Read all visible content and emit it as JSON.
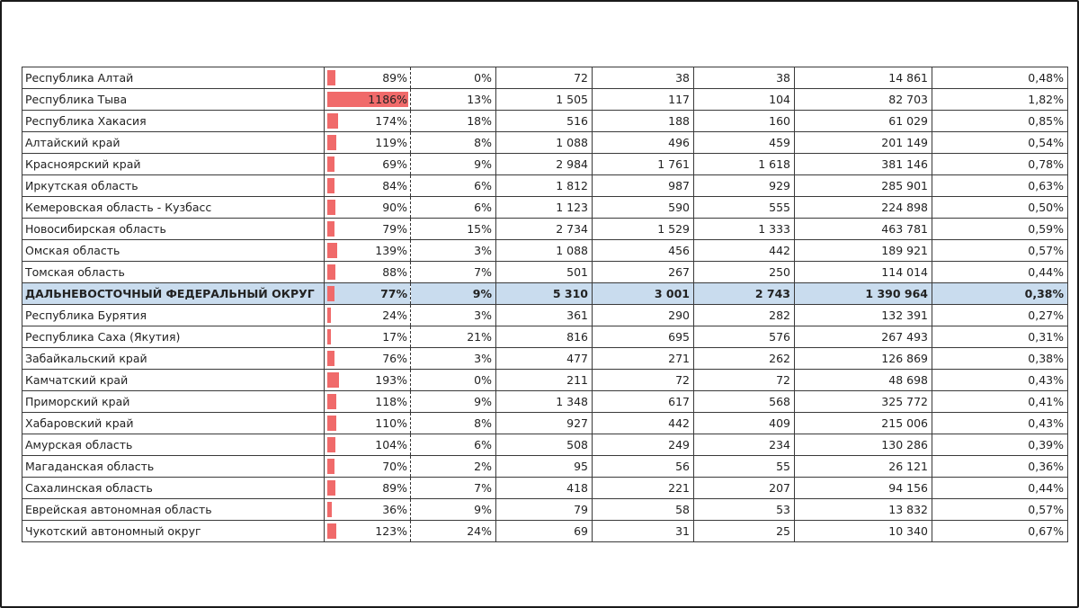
{
  "rows": [
    {
      "name": "Республика Алтай",
      "ratio": "89%",
      "ratio_value": 89,
      "share": "0%",
      "c3": "72",
      "c4": "38",
      "c5": "38",
      "c6": "14 861",
      "c7": "0,48%",
      "district": false
    },
    {
      "name": "Республика Тыва",
      "ratio": "1186%",
      "ratio_value": 1186,
      "share": "13%",
      "c3": "1 505",
      "c4": "117",
      "c5": "104",
      "c6": "82 703",
      "c7": "1,82%",
      "district": false
    },
    {
      "name": "Республика Хакасия",
      "ratio": "174%",
      "ratio_value": 174,
      "share": "18%",
      "c3": "516",
      "c4": "188",
      "c5": "160",
      "c6": "61 029",
      "c7": "0,85%",
      "district": false
    },
    {
      "name": "Алтайский край",
      "ratio": "119%",
      "ratio_value": 119,
      "share": "8%",
      "c3": "1 088",
      "c4": "496",
      "c5": "459",
      "c6": "201 149",
      "c7": "0,54%",
      "district": false
    },
    {
      "name": "Красноярский край",
      "ratio": "69%",
      "ratio_value": 69,
      "share": "9%",
      "c3": "2 984",
      "c4": "1 761",
      "c5": "1 618",
      "c6": "381 146",
      "c7": "0,78%",
      "district": false
    },
    {
      "name": "Иркутская область",
      "ratio": "84%",
      "ratio_value": 84,
      "share": "6%",
      "c3": "1 812",
      "c4": "987",
      "c5": "929",
      "c6": "285 901",
      "c7": "0,63%",
      "district": false
    },
    {
      "name": "Кемеровская область - Кузбасс",
      "ratio": "90%",
      "ratio_value": 90,
      "share": "6%",
      "c3": "1 123",
      "c4": "590",
      "c5": "555",
      "c6": "224 898",
      "c7": "0,50%",
      "district": false
    },
    {
      "name": "Новосибирская область",
      "ratio": "79%",
      "ratio_value": 79,
      "share": "15%",
      "c3": "2 734",
      "c4": "1 529",
      "c5": "1 333",
      "c6": "463 781",
      "c7": "0,59%",
      "district": false
    },
    {
      "name": "Омская область",
      "ratio": "139%",
      "ratio_value": 139,
      "share": "3%",
      "c3": "1 088",
      "c4": "456",
      "c5": "442",
      "c6": "189 921",
      "c7": "0,57%",
      "district": false
    },
    {
      "name": "Томская область",
      "ratio": "88%",
      "ratio_value": 88,
      "share": "7%",
      "c3": "501",
      "c4": "267",
      "c5": "250",
      "c6": "114 014",
      "c7": "0,44%",
      "district": false
    },
    {
      "name": "ДАЛЬНЕВОСТОЧНЫЙ ФЕДЕРАЛЬНЫЙ ОКРУГ",
      "ratio": "77%",
      "ratio_value": 77,
      "share": "9%",
      "c3": "5 310",
      "c4": "3 001",
      "c5": "2 743",
      "c6": "1 390 964",
      "c7": "0,38%",
      "district": true
    },
    {
      "name": "Республика Бурятия",
      "ratio": "24%",
      "ratio_value": 24,
      "share": "3%",
      "c3": "361",
      "c4": "290",
      "c5": "282",
      "c6": "132 391",
      "c7": "0,27%",
      "district": false
    },
    {
      "name": "Республика Саха (Якутия)",
      "ratio": "17%",
      "ratio_value": 17,
      "share": "21%",
      "c3": "816",
      "c4": "695",
      "c5": "576",
      "c6": "267 493",
      "c7": "0,31%",
      "district": false
    },
    {
      "name": "Забайкальский край",
      "ratio": "76%",
      "ratio_value": 76,
      "share": "3%",
      "c3": "477",
      "c4": "271",
      "c5": "262",
      "c6": "126 869",
      "c7": "0,38%",
      "district": false
    },
    {
      "name": "Камчатский край",
      "ratio": "193%",
      "ratio_value": 193,
      "share": "0%",
      "c3": "211",
      "c4": "72",
      "c5": "72",
      "c6": "48 698",
      "c7": "0,43%",
      "district": false
    },
    {
      "name": "Приморский край",
      "ratio": "118%",
      "ratio_value": 118,
      "share": "9%",
      "c3": "1 348",
      "c4": "617",
      "c5": "568",
      "c6": "325 772",
      "c7": "0,41%",
      "district": false
    },
    {
      "name": "Хабаровский край",
      "ratio": "110%",
      "ratio_value": 110,
      "share": "8%",
      "c3": "927",
      "c4": "442",
      "c5": "409",
      "c6": "215 006",
      "c7": "0,43%",
      "district": false
    },
    {
      "name": "Амурская область",
      "ratio": "104%",
      "ratio_value": 104,
      "share": "6%",
      "c3": "508",
      "c4": "249",
      "c5": "234",
      "c6": "130 286",
      "c7": "0,39%",
      "district": false
    },
    {
      "name": "Магаданская область",
      "ratio": "70%",
      "ratio_value": 70,
      "share": "2%",
      "c3": "95",
      "c4": "56",
      "c5": "55",
      "c6": "26 121",
      "c7": "0,36%",
      "district": false
    },
    {
      "name": "Сахалинская область",
      "ratio": "89%",
      "ratio_value": 89,
      "share": "7%",
      "c3": "418",
      "c4": "221",
      "c5": "207",
      "c6": "94 156",
      "c7": "0,44%",
      "district": false
    },
    {
      "name": "Еврейская автономная область",
      "ratio": "36%",
      "ratio_value": 36,
      "share": "9%",
      "c3": "79",
      "c4": "58",
      "c5": "53",
      "c6": "13 832",
      "c7": "0,57%",
      "district": false
    },
    {
      "name": "Чукотский автономный округ",
      "ratio": "123%",
      "ratio_value": 123,
      "share": "24%",
      "c3": "69",
      "c4": "31",
      "c5": "25",
      "c6": "10 340",
      "c7": "0,67%",
      "district": false
    }
  ],
  "bar_max_value": 1186,
  "colors": {
    "bar": "#f06a6a",
    "district_row": "#c9dcee",
    "grid": "#3a3a3a"
  }
}
